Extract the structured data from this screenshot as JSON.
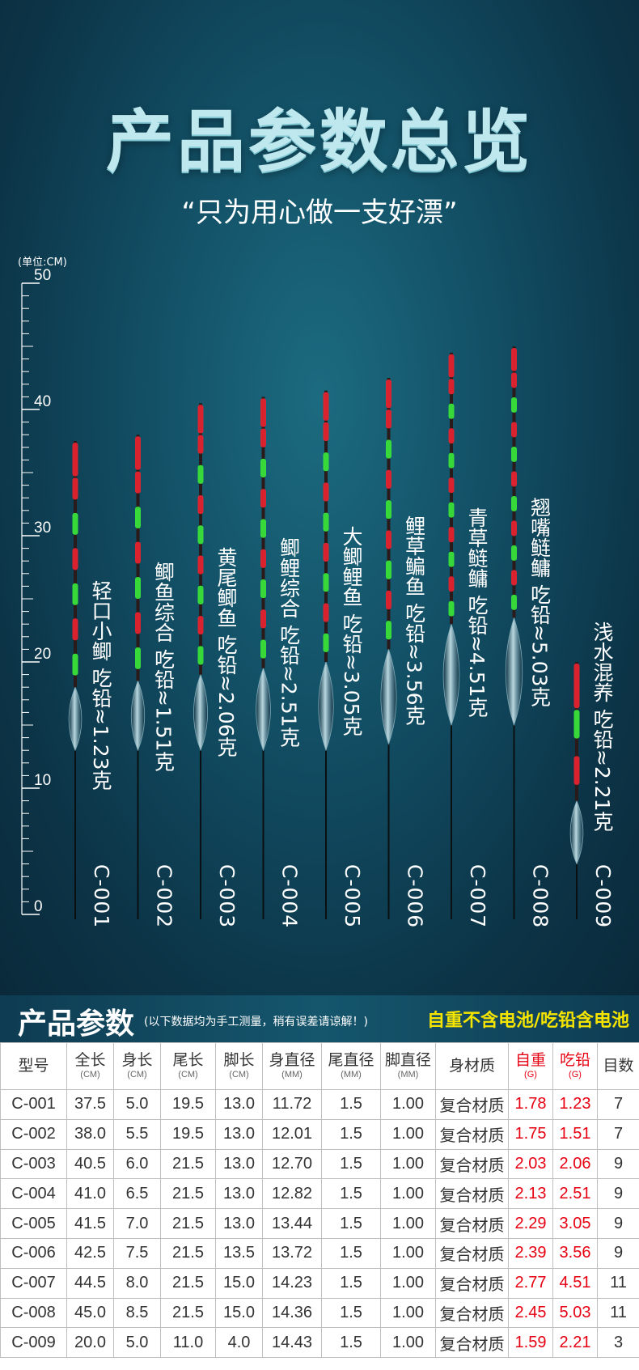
{
  "hero": {
    "title": "产品参数总览",
    "subtitle": "“只为用心做一支好漂”",
    "unit_label": "(单位:CM)",
    "ruler_ticks": [
      "50",
      "40",
      "30",
      "20",
      "10",
      "0"
    ]
  },
  "floats": [
    {
      "model": "C-001",
      "name": "轻口小鲫",
      "lead": "吃铅≈1.23克",
      "length_cm": 37.5,
      "body_cm": 5.0,
      "tail_cm": 19.5,
      "leg_cm": 13.0
    },
    {
      "model": "C-002",
      "name": "鲫鱼综合",
      "lead": "吃铅≈1.51克",
      "length_cm": 38.0,
      "body_cm": 5.5,
      "tail_cm": 19.5,
      "leg_cm": 13.0
    },
    {
      "model": "C-003",
      "name": "黄尾鲫鱼",
      "lead": "吃铅≈2.06克",
      "length_cm": 40.5,
      "body_cm": 6.0,
      "tail_cm": 21.5,
      "leg_cm": 13.0
    },
    {
      "model": "C-004",
      "name": "鲫鲤综合",
      "lead": "吃铅≈2.51克",
      "length_cm": 41.0,
      "body_cm": 6.5,
      "tail_cm": 21.5,
      "leg_cm": 13.0
    },
    {
      "model": "C-005",
      "name": "大鲫鲤鱼",
      "lead": "吃铅≈3.05克",
      "length_cm": 41.5,
      "body_cm": 7.0,
      "tail_cm": 21.5,
      "leg_cm": 13.0
    },
    {
      "model": "C-006",
      "name": "鲤草鳊鱼",
      "lead": "吃铅≈3.56克",
      "length_cm": 42.5,
      "body_cm": 7.5,
      "tail_cm": 21.5,
      "leg_cm": 13.5
    },
    {
      "model": "C-007",
      "name": "青草鲢鳙",
      "lead": "吃铅≈4.51克",
      "length_cm": 44.5,
      "body_cm": 8.0,
      "tail_cm": 21.5,
      "leg_cm": 15.0
    },
    {
      "model": "C-008",
      "name": "翘嘴鲢鳙",
      "lead": "吃铅≈5.03克",
      "length_cm": 45.0,
      "body_cm": 8.5,
      "tail_cm": 21.5,
      "leg_cm": 15.0
    },
    {
      "model": "C-009",
      "name": "浅水混养",
      "lead": "吃铅≈2.21克",
      "length_cm": 20.0,
      "body_cm": 5.0,
      "tail_cm": 11.0,
      "leg_cm": 4.0
    }
  ],
  "params": {
    "title": "产品参数",
    "note": "(以下数据均为手工测量，稍有误差请谅解！)",
    "tag": "自重不含电池/吃铅含电池",
    "headers": [
      {
        "label": "型号",
        "unit": ""
      },
      {
        "label": "全长",
        "unit": "(CM)"
      },
      {
        "label": "身长",
        "unit": "(CM)"
      },
      {
        "label": "尾长",
        "unit": "(CM)"
      },
      {
        "label": "脚长",
        "unit": "(CM)"
      },
      {
        "label": "身直径",
        "unit": "(MM)"
      },
      {
        "label": "尾直径",
        "unit": "(MM)"
      },
      {
        "label": "脚直径",
        "unit": "(MM)"
      },
      {
        "label": "身材质",
        "unit": ""
      },
      {
        "label": "自重",
        "unit": "(G)"
      },
      {
        "label": "吃铅",
        "unit": "(G)"
      },
      {
        "label": "目数",
        "unit": ""
      }
    ],
    "rows": [
      [
        "C-001",
        "37.5",
        "5.0",
        "19.5",
        "13.0",
        "11.72",
        "1.5",
        "1.00",
        "复合材质",
        "1.78",
        "1.23",
        "7"
      ],
      [
        "C-002",
        "38.0",
        "5.5",
        "19.5",
        "13.0",
        "12.01",
        "1.5",
        "1.00",
        "复合材质",
        "1.75",
        "1.51",
        "7"
      ],
      [
        "C-003",
        "40.5",
        "6.0",
        "21.5",
        "13.0",
        "12.70",
        "1.5",
        "1.00",
        "复合材质",
        "2.03",
        "2.06",
        "9"
      ],
      [
        "C-004",
        "41.0",
        "6.5",
        "21.5",
        "13.0",
        "12.82",
        "1.5",
        "1.00",
        "复合材质",
        "2.13",
        "2.51",
        "9"
      ],
      [
        "C-005",
        "41.5",
        "7.0",
        "21.5",
        "13.0",
        "13.44",
        "1.5",
        "1.00",
        "复合材质",
        "2.29",
        "3.05",
        "9"
      ],
      [
        "C-006",
        "42.5",
        "7.5",
        "21.5",
        "13.5",
        "13.72",
        "1.5",
        "1.00",
        "复合材质",
        "2.39",
        "3.56",
        "9"
      ],
      [
        "C-007",
        "44.5",
        "8.0",
        "21.5",
        "15.0",
        "14.23",
        "1.5",
        "1.00",
        "复合材质",
        "2.77",
        "4.51",
        "11"
      ],
      [
        "C-008",
        "45.0",
        "8.5",
        "21.5",
        "15.0",
        "14.36",
        "1.5",
        "1.00",
        "复合材质",
        "2.45",
        "5.03",
        "11"
      ],
      [
        "C-009",
        "20.0",
        "5.0",
        "11.0",
        "4.0",
        "14.43",
        "1.5",
        "1.00",
        "复合材质",
        "1.59",
        "2.21",
        "3"
      ]
    ]
  },
  "colors": {
    "hero_bg": "#124e64",
    "title": "#bfe8ee",
    "tag_yellow": "#f5e400",
    "red_text": "#e60012",
    "segment_red": "#e3232f",
    "segment_green": "#39e33a"
  }
}
